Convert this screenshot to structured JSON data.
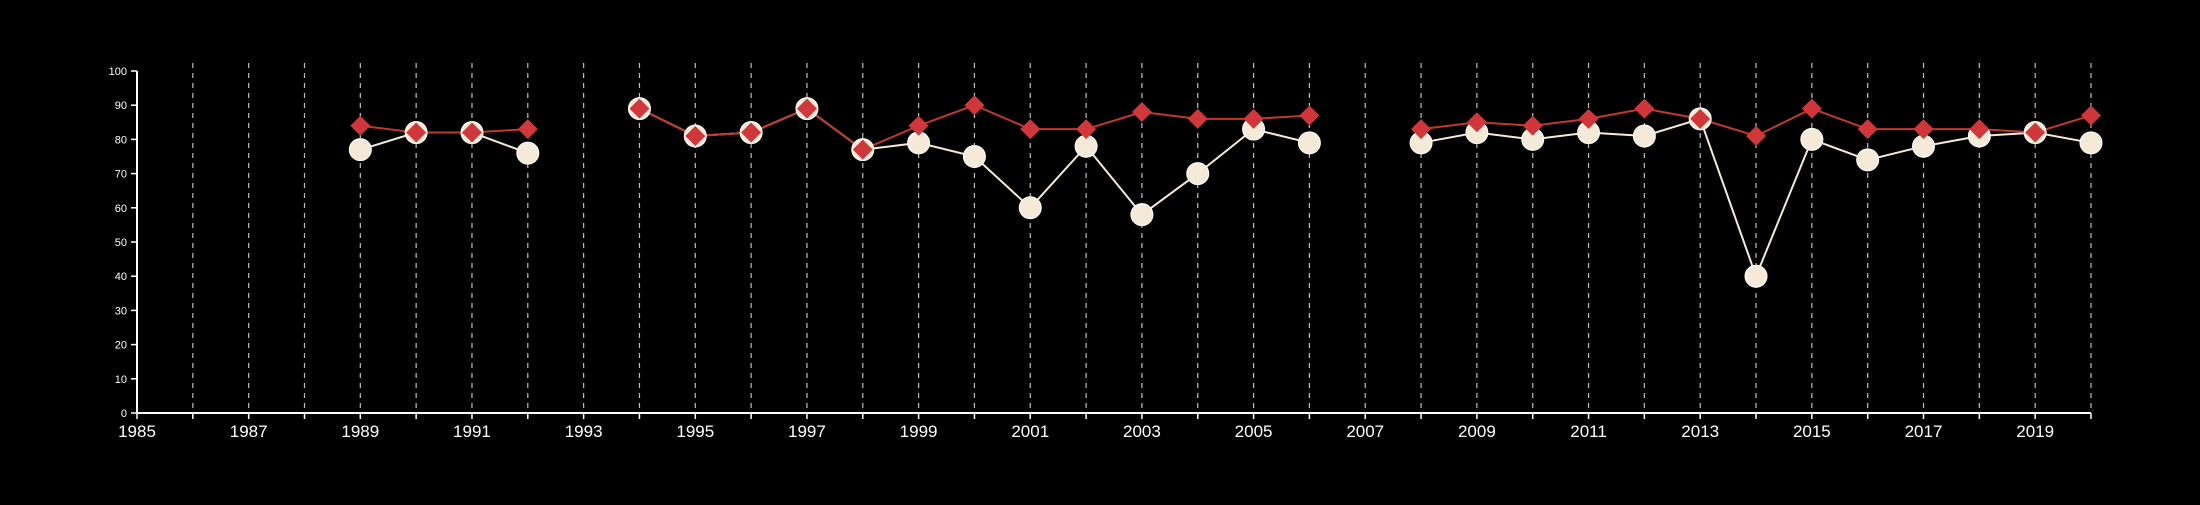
{
  "chart_data": {
    "type": "line",
    "title": "",
    "xlabel": "",
    "ylabel": "",
    "xlim": [
      1985,
      2020
    ],
    "ylim": [
      0,
      100
    ],
    "y_ticks": [
      0,
      10,
      20,
      30,
      40,
      50,
      60,
      70,
      80,
      90,
      100
    ],
    "x_tick_labels": [
      "1985",
      "1987",
      "1989",
      "1991",
      "1993",
      "1995",
      "1997",
      "1999",
      "2001",
      "2003",
      "2005",
      "2007",
      "2009",
      "2011",
      "2013",
      "2015",
      "2017",
      "2019"
    ],
    "x_minor_ticks_every": 1,
    "grid": "vertical dashed lines at every year",
    "legend": "none",
    "series": [
      {
        "marker": "diamond",
        "color": "#d1373a",
        "line_color": "#c0392b",
        "points": [
          [
            1989,
            84
          ],
          [
            1990,
            82
          ],
          [
            1991,
            82
          ],
          [
            1992,
            83
          ],
          [
            1993,
            null
          ],
          [
            1994,
            89
          ],
          [
            1995,
            81
          ],
          [
            1996,
            82
          ],
          [
            1997,
            89
          ],
          [
            1998,
            77
          ],
          [
            1999,
            84
          ],
          [
            2000,
            90
          ],
          [
            2001,
            83
          ],
          [
            2002,
            83
          ],
          [
            2003,
            88
          ],
          [
            2004,
            86
          ],
          [
            2005,
            86
          ],
          [
            2006,
            87
          ],
          [
            2007,
            null
          ],
          [
            2008,
            83
          ],
          [
            2009,
            85
          ],
          [
            2010,
            84
          ],
          [
            2011,
            86
          ],
          [
            2012,
            89
          ],
          [
            2013,
            86
          ],
          [
            2014,
            81
          ],
          [
            2015,
            89
          ],
          [
            2016,
            83
          ],
          [
            2017,
            83
          ],
          [
            2018,
            83
          ],
          [
            2019,
            82
          ],
          [
            2020,
            87
          ]
        ]
      },
      {
        "marker": "circle",
        "color": "#f5ead7",
        "line_color": "#f5ead7",
        "points": [
          [
            1989,
            77
          ],
          [
            1990,
            82
          ],
          [
            1991,
            82
          ],
          [
            1992,
            76
          ],
          [
            1993,
            null
          ],
          [
            1994,
            89
          ],
          [
            1995,
            81
          ],
          [
            1996,
            82
          ],
          [
            1997,
            89
          ],
          [
            1998,
            77
          ],
          [
            1999,
            79
          ],
          [
            2000,
            75
          ],
          [
            2001,
            60
          ],
          [
            2002,
            78
          ],
          [
            2003,
            58
          ],
          [
            2004,
            70
          ],
          [
            2005,
            83
          ],
          [
            2006,
            79
          ],
          [
            2007,
            null
          ],
          [
            2008,
            79
          ],
          [
            2009,
            82
          ],
          [
            2010,
            80
          ],
          [
            2011,
            82
          ],
          [
            2012,
            81
          ],
          [
            2013,
            86
          ],
          [
            2014,
            40
          ],
          [
            2015,
            80
          ],
          [
            2016,
            74
          ],
          [
            2017,
            78
          ],
          [
            2018,
            81
          ],
          [
            2019,
            82
          ],
          [
            2020,
            79
          ]
        ]
      }
    ]
  }
}
